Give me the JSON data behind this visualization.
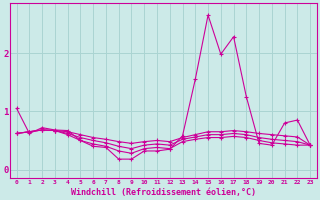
{
  "title": "",
  "xlabel": "Windchill (Refroidissement éolien,°C)",
  "ylabel": "",
  "bg_color": "#cceae8",
  "grid_color": "#aad4d2",
  "line_color": "#cc0099",
  "xlim": [
    -0.5,
    23.5
  ],
  "ylim": [
    -0.15,
    2.85
  ],
  "xticks": [
    0,
    1,
    2,
    3,
    4,
    5,
    6,
    7,
    8,
    9,
    10,
    11,
    12,
    13,
    14,
    15,
    16,
    17,
    18,
    19,
    20,
    21,
    22,
    23
  ],
  "yticks": [
    0,
    1,
    2
  ],
  "series_spike": [
    1.05,
    0.62,
    0.72,
    0.68,
    0.67,
    0.5,
    0.4,
    0.38,
    0.18,
    0.18,
    0.32,
    0.32,
    0.35,
    0.58,
    1.55,
    2.65,
    1.98,
    2.28,
    1.25,
    0.45,
    0.42,
    0.8,
    0.85,
    0.42
  ],
  "series_flat": [
    [
      0.62,
      0.65,
      0.68,
      0.67,
      0.65,
      0.6,
      0.55,
      0.52,
      0.48,
      0.45,
      0.48,
      0.5,
      0.48,
      0.55,
      0.6,
      0.65,
      0.65,
      0.67,
      0.65,
      0.62,
      0.6,
      0.58,
      0.56,
      0.42
    ],
    [
      0.62,
      0.65,
      0.68,
      0.67,
      0.62,
      0.55,
      0.5,
      0.46,
      0.4,
      0.36,
      0.42,
      0.44,
      0.42,
      0.52,
      0.56,
      0.6,
      0.6,
      0.62,
      0.6,
      0.55,
      0.52,
      0.5,
      0.48,
      0.42
    ],
    [
      0.62,
      0.65,
      0.68,
      0.67,
      0.6,
      0.5,
      0.44,
      0.4,
      0.32,
      0.28,
      0.36,
      0.38,
      0.36,
      0.48,
      0.52,
      0.55,
      0.55,
      0.57,
      0.55,
      0.5,
      0.46,
      0.44,
      0.42,
      0.42
    ]
  ]
}
